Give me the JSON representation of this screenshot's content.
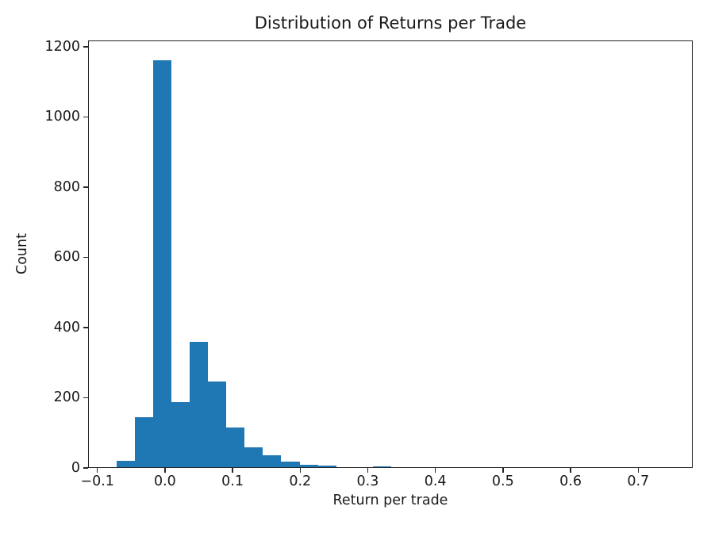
{
  "figure": {
    "background": "#ffffff",
    "axes_color": "#262626",
    "text_color": "#1a1a1a"
  },
  "chart_data": {
    "type": "bar",
    "subtype": "histogram",
    "title": "Distribution of Returns per Trade",
    "xlabel": "Return per trade",
    "ylabel": "Count",
    "bar_color": "#1f77b4",
    "grid": false,
    "legend_position": "none",
    "xlim": [
      -0.1137,
      0.7807
    ],
    "ylim": [
      0,
      1218
    ],
    "xticks": [
      {
        "v": -0.1,
        "label": "−0.1"
      },
      {
        "v": 0.0,
        "label": "0.0"
      },
      {
        "v": 0.1,
        "label": "0.1"
      },
      {
        "v": 0.2,
        "label": "0.2"
      },
      {
        "v": 0.3,
        "label": "0.3"
      },
      {
        "v": 0.4,
        "label": "0.4"
      },
      {
        "v": 0.5,
        "label": "0.5"
      },
      {
        "v": 0.6,
        "label": "0.6"
      },
      {
        "v": 0.7,
        "label": "0.7"
      }
    ],
    "yticks": [
      {
        "v": 0,
        "label": "0"
      },
      {
        "v": 200,
        "label": "200"
      },
      {
        "v": 400,
        "label": "400"
      },
      {
        "v": 600,
        "label": "600"
      },
      {
        "v": 800,
        "label": "800"
      },
      {
        "v": 1000,
        "label": "1000"
      },
      {
        "v": 1200,
        "label": "1200"
      }
    ],
    "bin_edges": [
      -0.073,
      -0.0459,
      -0.0188,
      0.0083,
      0.0354,
      0.0625,
      0.0896,
      0.1167,
      0.1438,
      0.1709,
      0.198,
      0.2251,
      0.2522,
      0.2793,
      0.3064,
      0.3335,
      0.3606,
      0.3877,
      0.4148,
      0.4419,
      0.469,
      0.4961,
      0.5232,
      0.5503,
      0.5774,
      0.6045,
      0.6316,
      0.6587,
      0.6858,
      0.7129,
      0.74
    ],
    "counts": [
      18,
      142,
      1160,
      186,
      358,
      243,
      112,
      57,
      33,
      15,
      6,
      5,
      0,
      0,
      2,
      0,
      0,
      0,
      0,
      0,
      0,
      0,
      0,
      0,
      0,
      0,
      0,
      0,
      0,
      1
    ]
  }
}
